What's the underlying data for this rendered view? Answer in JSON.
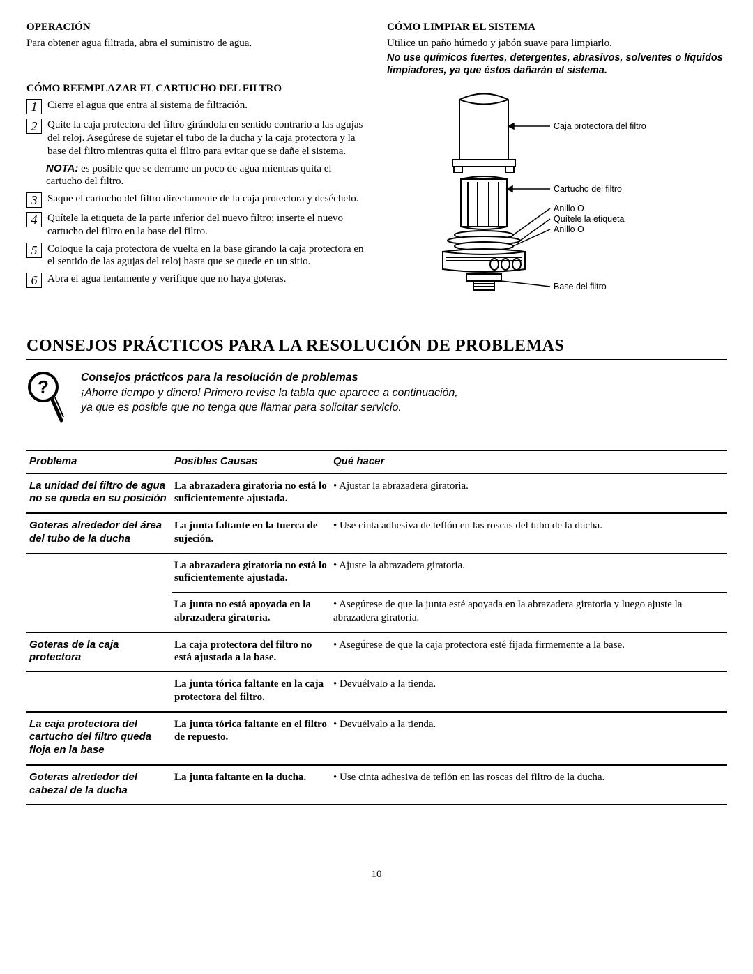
{
  "operacion": {
    "heading": "OPERACIÓN",
    "text": "Para obtener agua filtrada, abra el suministro de agua."
  },
  "limpiar": {
    "heading": "CÓMO LIMPIAR EL SISTEMA",
    "text": "Utilice un paño húmedo y jabón suave para limpiarlo.",
    "warning": "No use químicos fuertes, detergentes, abrasivos, solventes o líquidos limpiadores, ya que éstos dañarán el sistema."
  },
  "reemplazar": {
    "heading": "CÓMO REEMPLAZAR EL CARTUCHO DEL FILTRO",
    "steps": [
      "Cierre el agua que entra al sistema de filtración.",
      "Quite la caja protectora del filtro girándola en sentido contrario a las agujas del reloj. Asegúrese de sujetar el tubo de la ducha y la caja protectora y la base del filtro mientras quita el filtro para evitar que se dañe el sistema.",
      "Saque el cartucho del filtro directamente de la caja protectora y deséchelo.",
      "Quítele la etiqueta de la parte inferior del nuevo filtro; inserte el nuevo cartucho del filtro en la base del filtro.",
      "Coloque la caja protectora de vuelta en la base girando la caja protectora en el sentido de las agujas del reloj hasta que se quede en un sitio.",
      "Abra el agua lentamente y verifique que no haya goteras."
    ],
    "note_label": "NOTA:",
    "note_text": " es posible que se derrame un poco de agua mientras quita el cartucho del filtro."
  },
  "diagram": {
    "labels": {
      "caja": "Caja protectora del filtro",
      "cartucho": "Cartucho del filtro",
      "anillo1": "Anillo O",
      "etiqueta": "Quítele la etiqueta",
      "anillo2": "Anillo O",
      "base": "Base del filtro"
    }
  },
  "consejos": {
    "heading": "CONSEJOS PRÁCTICOS PARA LA RESOLUCIÓN DE PROBLEMAS",
    "tips_title": "Consejos prácticos para la resolución de problemas",
    "tips_line1": "¡Ahorre tiempo y dinero! Primero revise la tabla que aparece a continuación,",
    "tips_line2": "ya que es posible que no tenga que llamar para solicitar servicio."
  },
  "table": {
    "headers": {
      "problem": "Problema",
      "cause": "Posibles Causas",
      "action": "Qué hacer"
    },
    "rows": [
      {
        "problem": "La unidad del filtro de agua no se queda en su posición",
        "cause": "La abrazadera giratoria no está lo suficientemente ajustada.",
        "action": "• Ajustar la abrazadera giratoria.",
        "group_end": true
      },
      {
        "problem": "Goteras alrededor del área del tubo de la ducha",
        "cause": "La junta faltante en la tuerca de sujeción.",
        "action": "• Use cinta adhesiva de teflón en las roscas del tubo de la ducha.",
        "group_end": false
      },
      {
        "problem": "",
        "cause": "La abrazadera giratoria no está lo suficientemente ajustada.",
        "action": "• Ajuste la abrazadera giratoria.",
        "group_end": false
      },
      {
        "problem": "",
        "cause": "La junta no está apoyada en la abrazadera giratoria.",
        "action": "• Asegúrese de que la junta esté apoyada en la abrazadera giratoria y luego ajuste la abrazadera giratoria.",
        "group_end": true
      },
      {
        "problem": "Goteras de la caja protectora",
        "cause": "La caja protectora del filtro no está ajustada a la base.",
        "action": "• Asegúrese de que la caja protectora esté fijada firmemente a la base.",
        "group_end": false
      },
      {
        "problem": "",
        "cause": "La junta tórica faltante en la caja protectora del filtro.",
        "action": "• Devuélvalo a la tienda.",
        "group_end": true
      },
      {
        "problem": "La caja protectora del cartucho del filtro queda floja en la base",
        "cause": "La junta tórica faltante en el filtro de repuesto.",
        "action": "• Devuélvalo a la tienda.",
        "group_end": true
      },
      {
        "problem": "Goteras alrededor del cabezal de la ducha",
        "cause": "La junta faltante en la ducha.",
        "action": "• Use cinta adhesiva de teflón en las roscas del filtro de la ducha.",
        "group_end": true
      }
    ]
  },
  "page_number": "10"
}
